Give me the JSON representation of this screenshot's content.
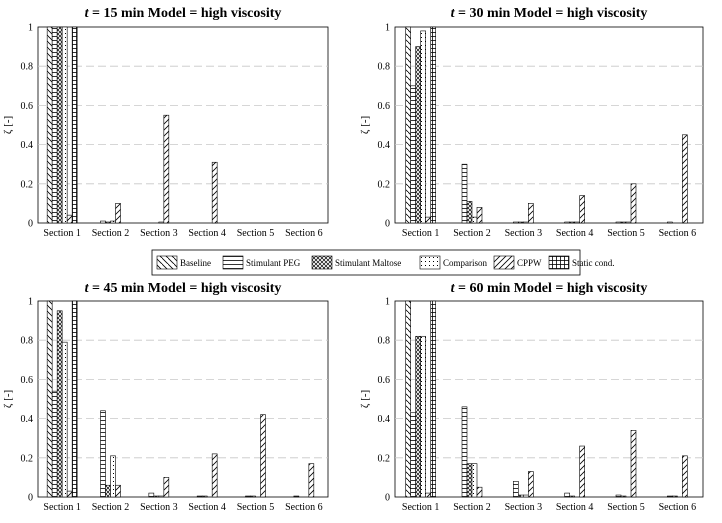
{
  "chart_data": [
    {
      "type": "bar",
      "title_var": "t",
      "title_rest": " = 15 min    Model = high viscosity",
      "ylabel": "ζ [-]",
      "ylim": [
        0,
        1
      ],
      "yticks": [
        "0",
        "0.2",
        "0.4",
        "0.6",
        "0.8",
        "1"
      ],
      "categories": [
        "Section 1",
        "Section 2",
        "Section 3",
        "Section 4",
        "Section 5",
        "Section 6"
      ],
      "series": [
        {
          "name": "Baseline",
          "values": [
            1.0,
            0.0,
            0.0,
            0.0,
            0.0,
            0.0
          ]
        },
        {
          "name": "Stimulant PEG",
          "values": [
            1.0,
            0.01,
            0.0,
            0.0,
            0.0,
            0.0
          ]
        },
        {
          "name": "Stimulant Maltose",
          "values": [
            1.0,
            0.005,
            0.0,
            0.0,
            0.0,
            0.0
          ]
        },
        {
          "name": "Comparison",
          "values": [
            1.0,
            0.01,
            0.005,
            0.0,
            0.0,
            0.0
          ]
        },
        {
          "name": "CPPW",
          "values": [
            0.04,
            0.1,
            0.55,
            0.31,
            0.0,
            0.0
          ]
        },
        {
          "name": "Static cond.",
          "values": [
            1.0,
            0.0,
            0.0,
            0.0,
            0.0,
            0.0
          ]
        }
      ]
    },
    {
      "type": "bar",
      "title_var": "t",
      "title_rest": " = 30 min    Model = high viscosity",
      "ylabel": "ζ [-]",
      "ylim": [
        0,
        1
      ],
      "yticks": [
        "0",
        "0.2",
        "0.4",
        "0.6",
        "0.8",
        "1"
      ],
      "categories": [
        "Section 1",
        "Section 2",
        "Section 3",
        "Section 4",
        "Section 5",
        "Section 6"
      ],
      "series": [
        {
          "name": "Baseline",
          "values": [
            1.0,
            0.0,
            0.0,
            0.0,
            0.0,
            0.0
          ]
        },
        {
          "name": "Stimulant PEG",
          "values": [
            0.7,
            0.3,
            0.005,
            0.005,
            0.005,
            0.005
          ]
        },
        {
          "name": "Stimulant Maltose",
          "values": [
            0.9,
            0.11,
            0.005,
            0.005,
            0.005,
            0.0
          ]
        },
        {
          "name": "Comparison",
          "values": [
            0.98,
            0.03,
            0.005,
            0.005,
            0.005,
            0.0
          ]
        },
        {
          "name": "CPPW",
          "values": [
            0.03,
            0.08,
            0.1,
            0.14,
            0.2,
            0.45
          ]
        },
        {
          "name": "Static cond.",
          "values": [
            1.0,
            0.0,
            0.0,
            0.0,
            0.0,
            0.0
          ]
        }
      ]
    },
    {
      "type": "bar",
      "title_var": "t",
      "title_rest": " = 45 min    Model = high viscosity",
      "ylabel": "ζ [-]",
      "ylim": [
        0,
        1
      ],
      "yticks": [
        "0",
        "0.2",
        "0.4",
        "0.6",
        "0.8",
        "1"
      ],
      "categories": [
        "Section 1",
        "Section 2",
        "Section 3",
        "Section 4",
        "Section 5",
        "Section 6"
      ],
      "series": [
        {
          "name": "Baseline",
          "values": [
            1.0,
            0.0,
            0.0,
            0.0,
            0.0,
            0.0
          ]
        },
        {
          "name": "Stimulant PEG",
          "values": [
            0.54,
            0.44,
            0.02,
            0.005,
            0.005,
            0.005
          ]
        },
        {
          "name": "Stimulant Maltose",
          "values": [
            0.95,
            0.06,
            0.005,
            0.005,
            0.005,
            0.0
          ]
        },
        {
          "name": "Comparison",
          "values": [
            0.79,
            0.21,
            0.005,
            0.0,
            0.0,
            0.0
          ]
        },
        {
          "name": "CPPW",
          "values": [
            0.03,
            0.06,
            0.1,
            0.22,
            0.42,
            0.17
          ]
        },
        {
          "name": "Static cond.",
          "values": [
            1.0,
            0.0,
            0.0,
            0.0,
            0.0,
            0.0
          ]
        }
      ]
    },
    {
      "type": "bar",
      "title_var": "t",
      "title_rest": " = 60 min    Model = high viscosity",
      "ylabel": "ζ [-]",
      "ylim": [
        0,
        1
      ],
      "yticks": [
        "0",
        "0.2",
        "0.4",
        "0.6",
        "0.8",
        "1"
      ],
      "categories": [
        "Section 1",
        "Section 2",
        "Section 3",
        "Section 4",
        "Section 5",
        "Section 6"
      ],
      "series": [
        {
          "name": "Baseline",
          "values": [
            1.0,
            0.0,
            0.0,
            0.0,
            0.0,
            0.0
          ]
        },
        {
          "name": "Stimulant PEG",
          "values": [
            0.43,
            0.46,
            0.08,
            0.02,
            0.01,
            0.005
          ]
        },
        {
          "name": "Stimulant Maltose",
          "values": [
            0.82,
            0.17,
            0.01,
            0.005,
            0.005,
            0.005
          ]
        },
        {
          "name": "Comparison",
          "values": [
            0.82,
            0.17,
            0.01,
            0.0,
            0.0,
            0.0
          ]
        },
        {
          "name": "CPPW",
          "values": [
            0.02,
            0.05,
            0.13,
            0.26,
            0.34,
            0.21
          ]
        },
        {
          "name": "Static cond.",
          "values": [
            1.0,
            0.0,
            0.0,
            0.0,
            0.0,
            0.0
          ]
        }
      ]
    }
  ],
  "legend": {
    "items": [
      "Baseline",
      "Stimulant PEG",
      "Stimulant Maltose",
      "Comparison",
      "CPPW",
      "Static cond."
    ],
    "placement": "center"
  }
}
